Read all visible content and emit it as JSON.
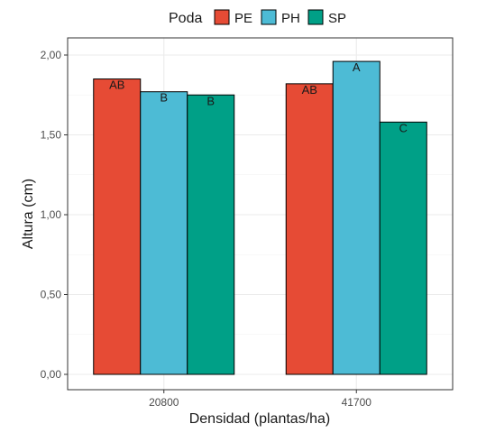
{
  "chart_data": {
    "type": "bar",
    "xlabel": "Densidad (plantas/ha)",
    "ylabel": "Altura (cm)",
    "categories": [
      "20800",
      "41700"
    ],
    "ylim": [
      0,
      2.1
    ],
    "yticks": [
      0,
      0.5,
      1.0,
      1.5,
      2.0
    ],
    "ytick_labels": [
      "0,00",
      "0,50",
      "1,00",
      "1,50",
      "2,00"
    ],
    "grid": true,
    "legend": {
      "title": "Poda",
      "position": "top"
    },
    "series": [
      {
        "name": "PE",
        "color": "#e64b35",
        "values": [
          1.85,
          1.82
        ],
        "labels": [
          "AB",
          "AB"
        ]
      },
      {
        "name": "PH",
        "color": "#4dbbd5",
        "values": [
          1.77,
          1.96
        ],
        "labels": [
          "B",
          "A"
        ]
      },
      {
        "name": "SP",
        "color": "#00a087",
        "values": [
          1.75,
          1.58
        ],
        "labels": [
          "B",
          "C"
        ]
      }
    ]
  }
}
